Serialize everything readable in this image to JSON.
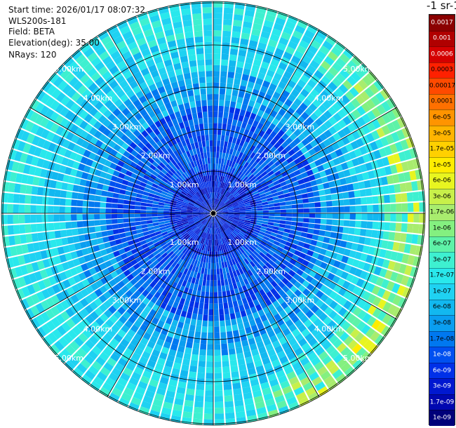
{
  "info": {
    "start_time": "Start time: 2026/01/17 08:07:32",
    "instrument": "WLS200s-181",
    "field": "Field: BETA",
    "elevation": "Elevation(deg): 35.00",
    "nrays": "NRays: 120"
  },
  "map": {
    "n_rays": 120,
    "range_ring_labels": [
      "1.00km",
      "2.00km",
      "3.00km",
      "4.00km",
      "5.00km"
    ],
    "crosshair_color": "#000000"
  },
  "colorbar": {
    "units_label": "-1 sr-1",
    "labels": [
      "0.0017",
      "0.001",
      "0.0006",
      "0.0003",
      "0.00017",
      "0.0001",
      "6e-05",
      "3e-05",
      "1.7e-05",
      "1e-05",
      "6e-06",
      "3e-06",
      "1.7e-06",
      "1e-06",
      "6e-07",
      "3e-07",
      "1.7e-07",
      "1e-07",
      "6e-08",
      "3e-08",
      "1.7e-08",
      "1e-08",
      "6e-09",
      "3e-09",
      "1.7e-09",
      "1e-09"
    ],
    "colors": [
      "#8b0000",
      "#b00000",
      "#d40000",
      "#ff2000",
      "#ff4a00",
      "#ff7000",
      "#ff9400",
      "#ffb400",
      "#ffd000",
      "#ffec00",
      "#e8f520",
      "#c8f04a",
      "#a8ec6e",
      "#84f080",
      "#5ef2a8",
      "#3ef0d0",
      "#29e8ec",
      "#1fd2f2",
      "#12b8f0",
      "#0a9ef0",
      "#0078f0",
      "#0050f0",
      "#0030e8",
      "#0018d0",
      "#0008b0",
      "#00007a"
    ],
    "dark_label_colors": [
      "#8b0000",
      "#b00000",
      "#d40000",
      "#0050f0",
      "#0030e8",
      "#0018d0",
      "#0008b0",
      "#00007a"
    ]
  }
}
